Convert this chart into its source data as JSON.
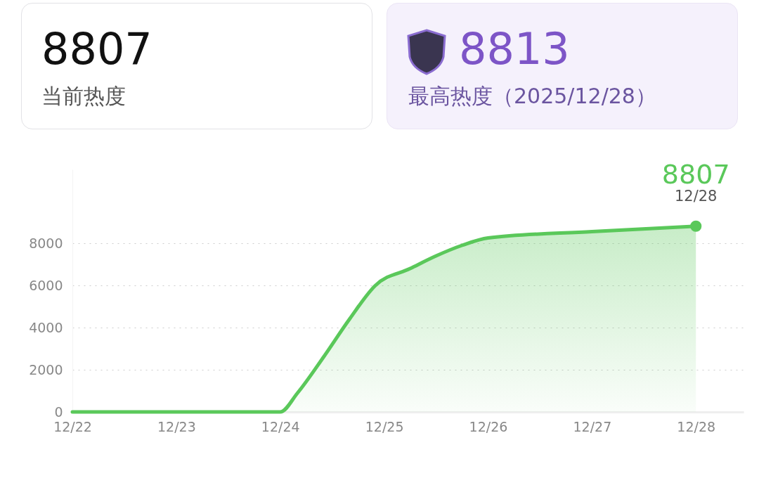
{
  "chart_data": {
    "type": "area",
    "x": [
      "2025-12-22",
      "2025-12-23",
      "2025-12-24",
      "2025-12-24T04:00",
      "2025-12-24T10:00",
      "2025-12-24T16:00",
      "2025-12-24T22:00",
      "2025-12-25T06:00",
      "2025-12-25T12:00",
      "2025-12-25T18:00",
      "2025-12-26",
      "2025-12-27",
      "2025-12-28"
    ],
    "series": [
      {
        "color": "#5ac85a",
        "values": [
          0,
          0,
          0,
          900,
          2600,
          4400,
          6000,
          6800,
          7400,
          7900,
          8250,
          8550,
          8807
        ],
        "value_labels": [
          null,
          null,
          null,
          null,
          null,
          null,
          null,
          null,
          null,
          null,
          null,
          null,
          "8807"
        ]
      }
    ],
    "annotations": [
      "8807",
      "当前热度",
      "8813",
      "最高热度（2025/12/28）",
      {
        "text": "12/28",
        "x": "2025-12-28",
        "y": 8807
      }
    ],
    "xlim": [
      "2025-12-22",
      "2025-12-28T11:00"
    ],
    "xticks": [
      {
        "value": "2025-12-22",
        "label": "12/22"
      },
      {
        "value": "2025-12-23",
        "label": "12/23"
      },
      {
        "value": "2025-12-24",
        "label": "12/24"
      },
      {
        "value": "2025-12-25",
        "label": "12/25"
      },
      {
        "value": "2025-12-26",
        "label": "12/26"
      },
      {
        "value": "2025-12-27",
        "label": "12/27"
      },
      {
        "value": "2025-12-28",
        "label": "12/28"
      }
    ],
    "ylim": [
      0,
      11500
    ],
    "yticks": [
      0,
      2000,
      4000,
      6000,
      8000
    ],
    "grid": "y"
  }
}
